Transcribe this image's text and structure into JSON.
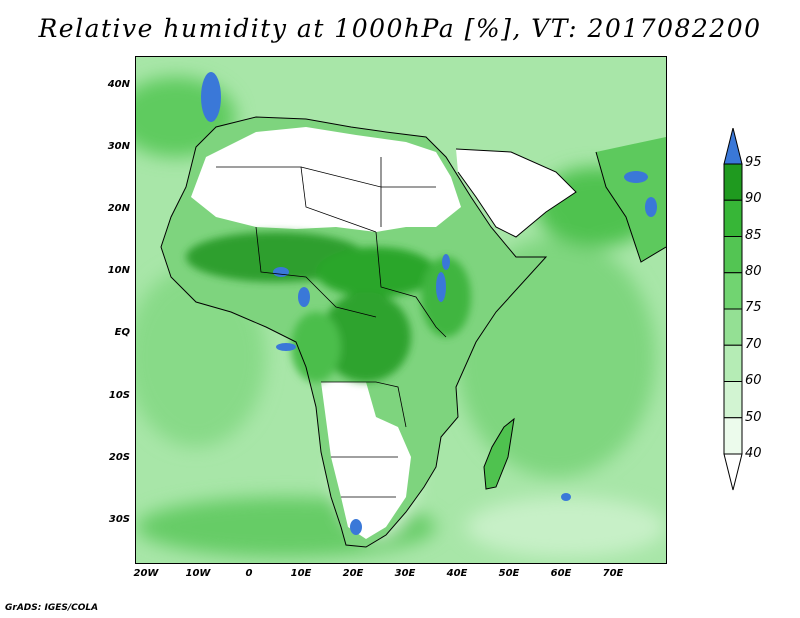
{
  "title": "Relative humidity at 1000hPa [%], VT: 2017082200",
  "credit": "GrADS: IGES/COLA",
  "map": {
    "lat_labels": [
      "40N",
      "30N",
      "20N",
      "10N",
      "EQ",
      "10S",
      "20S",
      "30S"
    ],
    "lon_labels": [
      "20W",
      "10W",
      "0",
      "10E",
      "20E",
      "30E",
      "40E",
      "50E",
      "60E",
      "70E"
    ],
    "lon_range": [
      -22,
      80
    ],
    "lat_range": [
      -37,
      45
    ]
  },
  "colorbar": {
    "levels": [
      "95",
      "90",
      "85",
      "80",
      "75",
      "70",
      "60",
      "50",
      "40"
    ],
    "colors": [
      "#1f9a1f",
      "#37b637",
      "#53c553",
      "#71d471",
      "#94e094",
      "#b5ecb5",
      "#d2f4d2",
      "#ecfbec"
    ],
    "over_color": "#3a78d8",
    "under_color": "#ffffff"
  }
}
